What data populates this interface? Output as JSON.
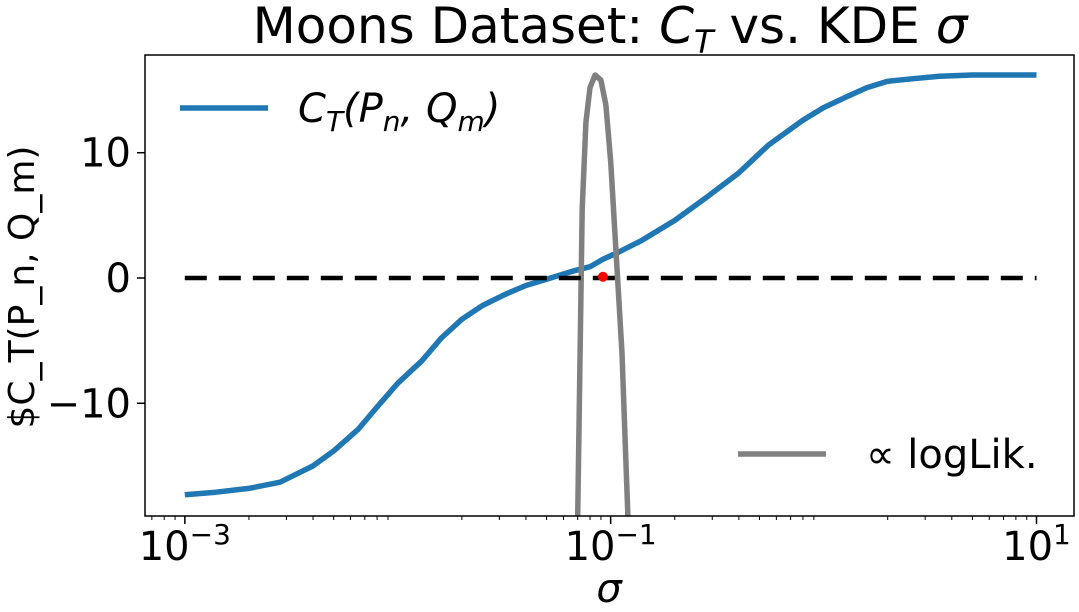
{
  "chart_data": {
    "type": "line",
    "title_prefix": "Moons Dataset: ",
    "title_ct_main": "C",
    "title_ct_sub": "T",
    "title_mid": " vs. KDE ",
    "title_sigma": "σ",
    "xlabel": "σ",
    "ylabel": "$C_T(P_n, Q_m)",
    "xscale": "log",
    "xlim": [
      0.00065,
      15
    ],
    "ylim": [
      -19.0,
      17.8
    ],
    "x_ticks": [
      {
        "value": 0.001,
        "base": "10",
        "exp": "−3"
      },
      {
        "value": 0.1,
        "base": "10",
        "exp": "−1"
      },
      {
        "value": 10,
        "base": "10",
        "exp": "1"
      }
    ],
    "y_ticks": [
      {
        "value": 10,
        "label": "10"
      },
      {
        "value": 0,
        "label": "0"
      },
      {
        "value": -10,
        "label": "−10"
      }
    ],
    "series": [
      {
        "name": "C_T(P_n, Q_m)",
        "color": "#1f77b4",
        "x": [
          0.001,
          0.0014,
          0.002,
          0.0028,
          0.004,
          0.005,
          0.0065,
          0.008,
          0.01,
          0.013,
          0.016,
          0.02,
          0.025,
          0.032,
          0.04,
          0.05,
          0.065,
          0.08,
          0.092,
          0.11,
          0.14,
          0.2,
          0.28,
          0.4,
          0.55,
          0.8,
          1.0,
          1.3,
          1.6,
          2.0,
          2.6,
          3.5,
          5.0,
          7.0,
          10.0
        ],
        "y": [
          -17.3,
          -17.1,
          -16.8,
          -16.3,
          -15.0,
          -13.8,
          -12.1,
          -10.3,
          -8.4,
          -6.6,
          -4.8,
          -3.3,
          -2.2,
          -1.3,
          -0.6,
          -0.1,
          0.5,
          0.9,
          1.5,
          2.1,
          3.0,
          4.6,
          6.4,
          8.4,
          10.6,
          12.6,
          13.6,
          14.5,
          15.2,
          15.7,
          15.9,
          16.1,
          16.2,
          16.2,
          16.2
        ]
      },
      {
        "name": "∝ logLik.",
        "color": "#808080",
        "x": [
          0.07,
          0.0735,
          0.0765,
          0.08,
          0.0845,
          0.09,
          0.095,
          0.1,
          0.106,
          0.113,
          0.1175,
          0.1205
        ],
        "y": [
          -19.0,
          5.5,
          12.4,
          15.2,
          16.2,
          15.8,
          13.8,
          9.3,
          2.0,
          -6.0,
          -14.0,
          -19.0
        ]
      },
      {
        "name": "zero-line",
        "color": "#000000",
        "style": "dashed",
        "x": [
          0.001,
          10
        ],
        "y": [
          0,
          0
        ]
      }
    ],
    "marker": {
      "x": 0.092,
      "y": 0.1,
      "color": "#ff0000"
    },
    "legend": [
      {
        "main": "C",
        "sub": "T",
        "args": "(P",
        "arg1sub": "n",
        "mid": ", Q",
        "arg2sub": "m",
        "close": ")",
        "color": "#1f77b4",
        "location": "top-left"
      },
      {
        "prefix": "∝ ",
        "text": "logLik.",
        "color": "#808080",
        "location": "bottom-right"
      }
    ]
  }
}
